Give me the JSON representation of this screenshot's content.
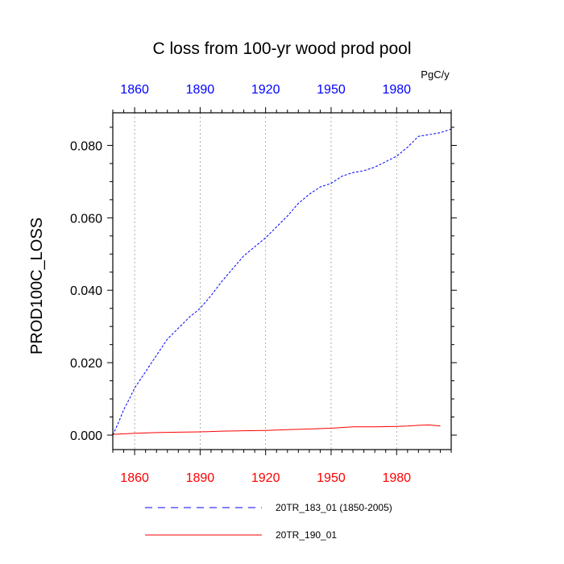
{
  "chart_data": {
    "type": "line",
    "title": "C loss from 100-yr wood prod pool",
    "ylabel": "PROD100C_LOSS",
    "units": "PgC/y",
    "xlim": [
      1850,
      2005
    ],
    "ylim": [
      -0.004,
      0.089
    ],
    "x_ticks_top": [
      1860,
      1890,
      1920,
      1950,
      1980
    ],
    "x_ticks_bottom": [
      1860,
      1890,
      1920,
      1950,
      1980
    ],
    "y_ticks": [
      0.0,
      0.02,
      0.04,
      0.06,
      0.08
    ],
    "y_tick_labels": [
      "0.000",
      "0.020",
      "0.040",
      "0.060",
      "0.080"
    ],
    "grid": "vertical-dotted",
    "legend_position": "bottom",
    "colors": {
      "top_axis": "#0000ff",
      "bottom_axis": "#ff0000"
    },
    "series": [
      {
        "name": "20TR_183_01 (1850-2005)",
        "color": "#0000ff",
        "dash": "dashed",
        "x": [
          1850,
          1853,
          1855,
          1858,
          1860,
          1865,
          1870,
          1875,
          1880,
          1885,
          1890,
          1895,
          1900,
          1905,
          1910,
          1915,
          1920,
          1925,
          1930,
          1935,
          1940,
          1945,
          1950,
          1955,
          1960,
          1965,
          1970,
          1975,
          1980,
          1985,
          1990,
          1995,
          2000,
          2005
        ],
        "y": [
          0.0,
          0.004,
          0.007,
          0.0105,
          0.013,
          0.0175,
          0.022,
          0.0265,
          0.0295,
          0.0325,
          0.035,
          0.0385,
          0.0425,
          0.046,
          0.0495,
          0.052,
          0.0545,
          0.0575,
          0.0605,
          0.064,
          0.0665,
          0.0685,
          0.0695,
          0.0715,
          0.0725,
          0.073,
          0.074,
          0.0755,
          0.077,
          0.0795,
          0.0825,
          0.083,
          0.0835,
          0.0845
        ]
      },
      {
        "name": "20TR_190_01",
        "color": "#ff0000",
        "dash": "solid",
        "x": [
          1850,
          1860,
          1870,
          1880,
          1890,
          1900,
          1910,
          1920,
          1930,
          1940,
          1950,
          1955,
          1960,
          1970,
          1980,
          1985,
          1990,
          1995,
          2000
        ],
        "y": [
          0.0002,
          0.0005,
          0.0007,
          0.0008,
          0.0009,
          0.0011,
          0.0012,
          0.0013,
          0.0015,
          0.0017,
          0.0019,
          0.0021,
          0.0023,
          0.0023,
          0.0024,
          0.0025,
          0.0027,
          0.0028,
          0.0025
        ]
      }
    ]
  }
}
